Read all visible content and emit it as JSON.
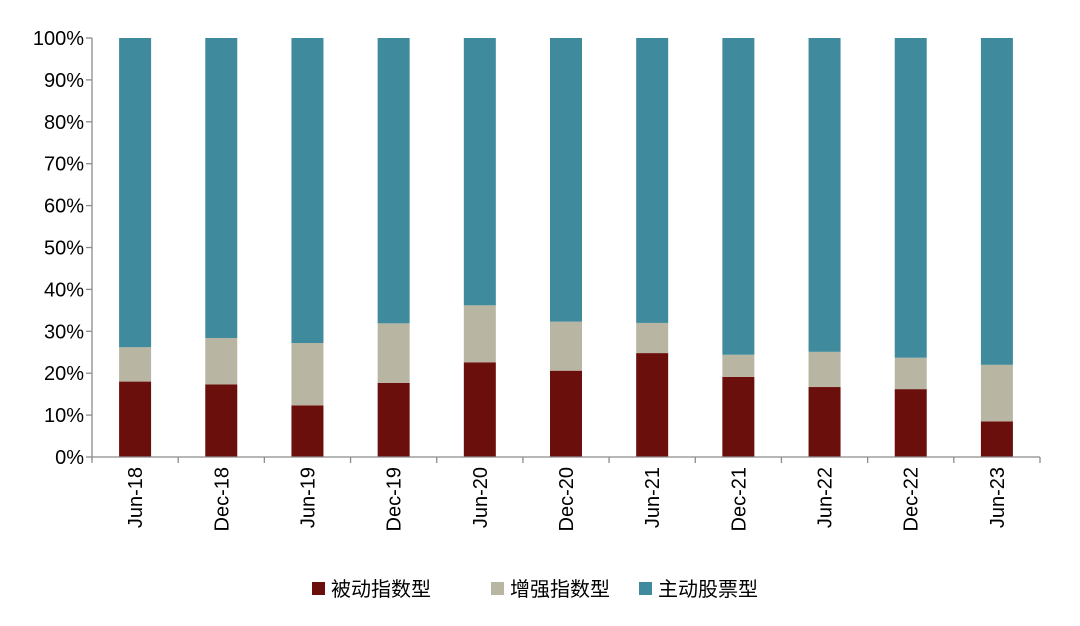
{
  "chart_data": {
    "type": "bar",
    "stacked": true,
    "categories": [
      "Jun-18",
      "Dec-18",
      "Jun-19",
      "Dec-19",
      "Jun-20",
      "Dec-20",
      "Jun-21",
      "Dec-21",
      "Jun-22",
      "Dec-22",
      "Jun-23"
    ],
    "series": [
      {
        "name": "被动指数型",
        "color": "#6b0f0c",
        "values": [
          18.0,
          17.3,
          12.3,
          17.7,
          22.6,
          20.6,
          24.8,
          19.1,
          16.7,
          16.2,
          8.5
        ]
      },
      {
        "name": "增强指数型",
        "color": "#b8b5a2",
        "values": [
          8.2,
          11.1,
          14.9,
          14.2,
          13.6,
          11.7,
          7.2,
          5.3,
          8.4,
          7.5,
          13.5
        ]
      },
      {
        "name": "主动股票型",
        "color": "#3f8a9c",
        "values": [
          73.8,
          71.6,
          72.8,
          68.1,
          63.8,
          67.7,
          68.0,
          75.6,
          74.9,
          76.3,
          78.0
        ]
      }
    ],
    "ylim": [
      0,
      100
    ],
    "yticks": [
      "0%",
      "10%",
      "20%",
      "30%",
      "40%",
      "50%",
      "60%",
      "70%",
      "80%",
      "90%",
      "100%"
    ],
    "xlabel": "",
    "ylabel": "",
    "legend_position": "bottom",
    "grid": false
  }
}
